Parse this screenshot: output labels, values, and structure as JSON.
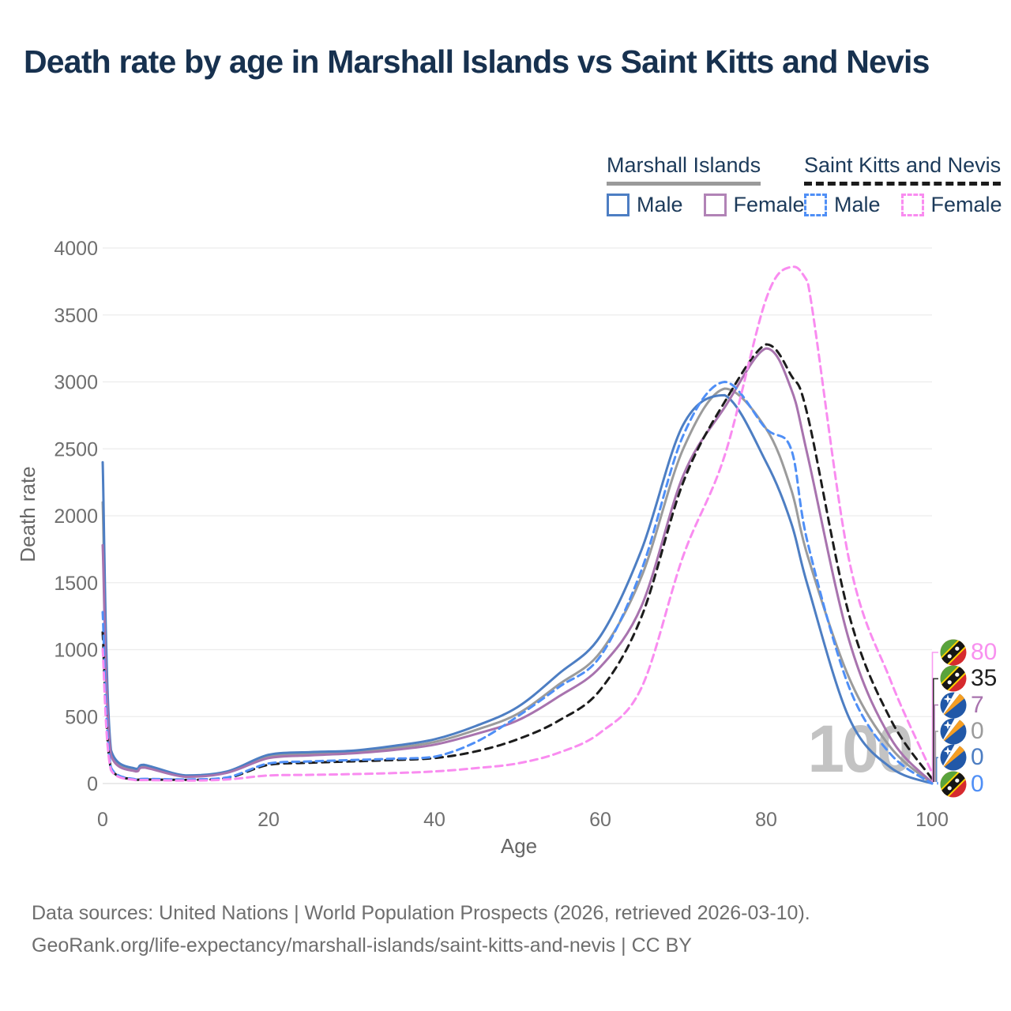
{
  "title": "Death rate by age in Marshall Islands vs Saint Kitts and Nevis",
  "legend": {
    "groups": [
      {
        "name": "Marshall Islands",
        "underline_color": "#9a9a9a",
        "underline_dashed": false,
        "items": [
          {
            "label": "Male",
            "color": "#4d7ec3",
            "dashed": false
          },
          {
            "label": "Female",
            "color": "#b183b6",
            "dashed": false
          }
        ]
      },
      {
        "name": "Saint Kitts and Nevis",
        "underline_color": "#1b1b1b",
        "underline_dashed": true,
        "items": [
          {
            "label": "Male",
            "color": "#4f8ff6",
            "dashed": true
          },
          {
            "label": "Female",
            "color": "#f98cf0",
            "dashed": true
          }
        ]
      }
    ]
  },
  "axes": {
    "x_label": "Age",
    "y_label": "Death rate",
    "x_ticks": [
      0,
      20,
      40,
      60,
      80,
      100
    ],
    "y_ticks": [
      0,
      500,
      1000,
      1500,
      2000,
      2500,
      3000,
      3500,
      4000
    ]
  },
  "watermark": "100",
  "end_labels": [
    {
      "value": "80",
      "series": "Saint Kitts and Nevis Female",
      "color": "#f890ef",
      "flag": "saint-kitts-and-nevis"
    },
    {
      "value": "35",
      "series": "Saint Kitts and Nevis",
      "color": "#1f1f1f",
      "flag": "saint-kitts-and-nevis"
    },
    {
      "value": "7",
      "series": "Marshall Islands Female",
      "color": "#a873ae",
      "flag": "marshall-islands"
    },
    {
      "value": "0",
      "series": "Marshall Islands",
      "color": "#9b9b9b",
      "flag": "marshall-islands"
    },
    {
      "value": "0",
      "series": "Marshall Islands Male",
      "color": "#4d7ec3",
      "flag": "marshall-islands"
    },
    {
      "value": "0",
      "series": "Saint Kitts and Nevis Male",
      "color": "#4f8ff6",
      "flag": "saint-kitts-and-nevis"
    }
  ],
  "footer": {
    "line1": "Data sources: United Nations | World Population Prospects (2026, retrieved 2026-03-10).",
    "line2": "GeoRank.org/life-expectancy/marshall-islands/saint-kitts-and-nevis | CC BY"
  },
  "chart_data": {
    "type": "line",
    "title": "Death rate by age in Marshall Islands vs Saint Kitts and Nevis",
    "xlabel": "Age",
    "ylabel": "Death rate",
    "xlim": [
      0,
      100
    ],
    "ylim": [
      0,
      4000
    ],
    "grid": "horizontal",
    "legend_position": "top-right",
    "x": [
      0,
      1,
      4,
      5,
      10,
      15,
      20,
      25,
      30,
      35,
      40,
      45,
      50,
      55,
      60,
      65,
      70,
      75,
      80,
      83,
      85,
      90,
      95,
      100
    ],
    "series": [
      {
        "name": "Marshall Islands",
        "sex": "both",
        "color": "#9b9b9b",
        "dash": null,
        "values": [
          2100,
          230,
          100,
          130,
          55,
          85,
          200,
          220,
          235,
          265,
          310,
          400,
          520,
          740,
          980,
          1550,
          2500,
          2950,
          2650,
          2200,
          1700,
          790,
          270,
          0
        ]
      },
      {
        "name": "Marshall Islands Male",
        "sex": "male",
        "color": "#4d7ec3",
        "dash": null,
        "values": [
          2400,
          250,
          110,
          140,
          60,
          90,
          215,
          235,
          245,
          280,
          330,
          430,
          570,
          820,
          1100,
          1750,
          2680,
          2900,
          2400,
          1950,
          1480,
          490,
          120,
          0
        ]
      },
      {
        "name": "Marshall Islands Female",
        "sex": "female",
        "color": "#a873ae",
        "dash": null,
        "values": [
          1780,
          210,
          90,
          120,
          50,
          80,
          190,
          210,
          225,
          250,
          290,
          370,
          470,
          650,
          870,
          1330,
          2300,
          2810,
          3250,
          2950,
          2450,
          1070,
          340,
          7
        ]
      },
      {
        "name": "Saint Kitts and Nevis",
        "sex": "both",
        "color": "#1c1c1c",
        "dash": "9 7",
        "values": [
          1130,
          110,
          28,
          30,
          27,
          40,
          140,
          155,
          165,
          175,
          190,
          240,
          330,
          470,
          700,
          1250,
          2250,
          2850,
          3280,
          3050,
          2750,
          1260,
          480,
          35
        ]
      },
      {
        "name": "Saint Kitts and Nevis Male",
        "sex": "male",
        "color": "#4f8ff6",
        "dash": "9 6",
        "values": [
          1280,
          120,
          30,
          35,
          30,
          45,
          150,
          165,
          175,
          185,
          200,
          310,
          500,
          720,
          950,
          1600,
          2600,
          3000,
          2650,
          2500,
          1800,
          720,
          220,
          0
        ]
      },
      {
        "name": "Saint Kitts and Nevis Female",
        "sex": "female",
        "color": "#f98cf0",
        "dash": "9 6",
        "values": [
          1005,
          100,
          25,
          26,
          22,
          30,
          60,
          65,
          70,
          78,
          90,
          115,
          150,
          230,
          380,
          720,
          1700,
          2450,
          3620,
          3860,
          3750,
          1670,
          770,
          80
        ]
      }
    ]
  }
}
